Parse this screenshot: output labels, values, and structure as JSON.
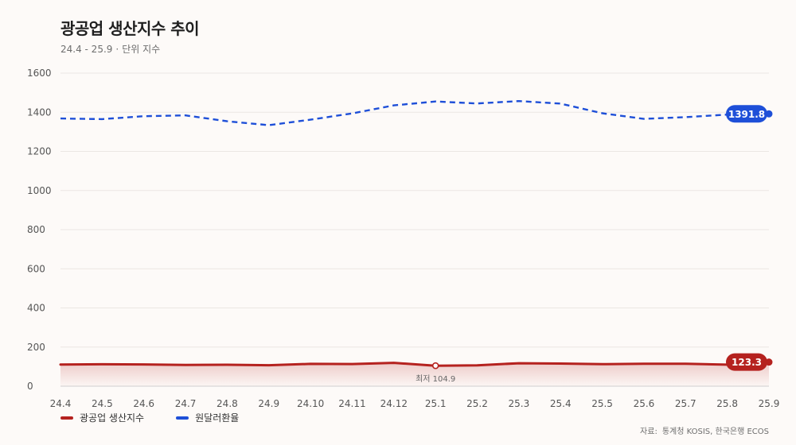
{
  "header": {
    "title": "광공업 생산지수 추이",
    "subtitle_period": "24.4 - 25.9",
    "subtitle_unit": "단위 지수"
  },
  "source": {
    "label": "자료:",
    "providers": "통계청 KOSIS, 한국은행 ECOS"
  },
  "chart_data": {
    "type": "line",
    "title": "광공업 생산지수 추이",
    "categories": [
      "24.4",
      "24.5",
      "24.6",
      "24.7",
      "24.8",
      "24.9",
      "24.10",
      "24.11",
      "24.12",
      "25.1",
      "25.2",
      "25.3",
      "25.4",
      "25.5",
      "25.6",
      "25.7",
      "25.8",
      "25.9"
    ],
    "ylim": [
      0,
      1600
    ],
    "yticks": [
      0,
      200,
      400,
      600,
      800,
      1000,
      1200,
      1400,
      1600
    ],
    "grid": true,
    "legend_position": "bottom-left",
    "series": [
      {
        "name": "광공업 생산지수",
        "color": "#b5221f",
        "style": "solid-area",
        "values": [
          110.5,
          112.0,
          111.2,
          108.4,
          109.6,
          107.3,
          114.2,
          113.5,
          119.2,
          104.9,
          106.8,
          117.5,
          115.6,
          112.3,
          114.8,
          114.4,
          110.1,
          123.3
        ],
        "end_label": "123.3",
        "min_annotation": {
          "index": 9,
          "label": "최저 104.9"
        }
      },
      {
        "name": "원달러환율",
        "color": "#1e4fd8",
        "style": "dashed",
        "values": [
          1368,
          1365,
          1380,
          1384,
          1354,
          1334,
          1362,
          1394,
          1435,
          1455,
          1445,
          1457,
          1444,
          1395,
          1366,
          1375,
          1388,
          1391.8
        ],
        "end_label": "1391.8"
      }
    ]
  }
}
